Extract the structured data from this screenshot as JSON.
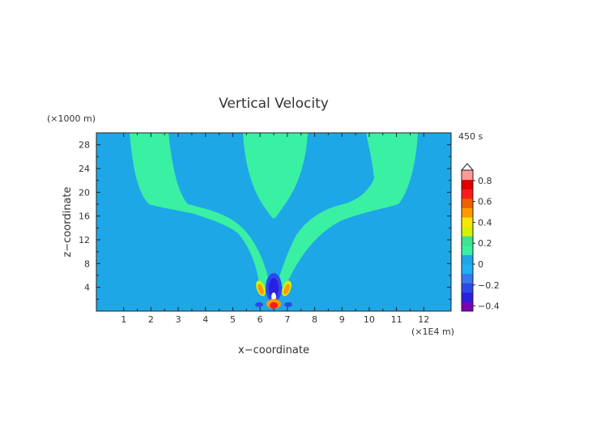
{
  "chart_data": {
    "type": "heatmap",
    "title": "Vertical Velocity",
    "xlabel": "x−coordinate",
    "ylabel": "z−coordinate",
    "x_unit": "(×1E4 m)",
    "y_unit": "(×1000 m)",
    "time_label": "450 s",
    "xlim": [
      0,
      13
    ],
    "ylim": [
      0,
      30
    ],
    "x_ticks": [
      "1",
      "2",
      "3",
      "4",
      "5",
      "6",
      "7",
      "8",
      "9",
      "10",
      "11",
      "12"
    ],
    "y_ticks": [
      "4",
      "8",
      "12",
      "16",
      "20",
      "24",
      "28"
    ],
    "colorbar_labels": [
      "0.8",
      "0.6",
      "0.4",
      "0.2",
      "0",
      "−0.2",
      "−0.4"
    ],
    "colorbar_label_values": [
      0.8,
      0.6,
      0.4,
      0.2,
      0,
      -0.2,
      -0.4
    ],
    "colorbar_min": -0.45,
    "colorbar_max": 0.9,
    "colorbar_colors": [
      "#7a00b0",
      "#2a1fe0",
      "#2c49ea",
      "#3a78f0",
      "#1fb0f5",
      "#1ea7e6",
      "#3af0a2",
      "#3ce48f",
      "#d8f000",
      "#f6e800",
      "#ff9900",
      "#f06000",
      "#ff1a1a",
      "#e00000",
      "#ff9a9a"
    ],
    "background_color": "#1ea7e6",
    "positive_color": "#3af0a2",
    "regions_description": "w approximately 0 (blue) everywhere except three upward-diverging branches of slightly positive w (green) rising from a compact dipole source near x=6.4, z=1",
    "source_features": [
      {
        "x": 6.4,
        "z": 3.0,
        "w": -0.35
      },
      {
        "x": 6.4,
        "z": 1.2,
        "w": 0.6
      },
      {
        "x": 6.0,
        "z": 3.8,
        "w": 0.3
      },
      {
        "x": 6.8,
        "z": 3.8,
        "w": 0.3
      }
    ]
  }
}
